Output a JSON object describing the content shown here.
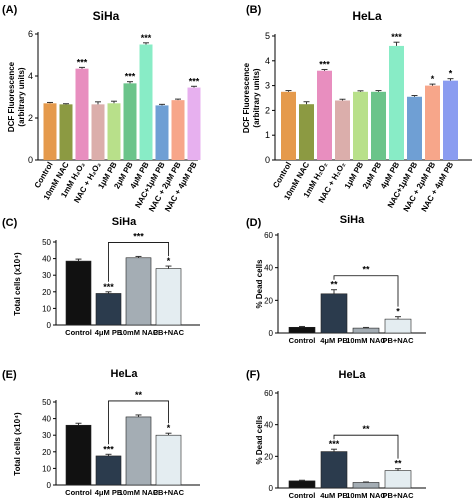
{
  "chart_data": [
    {
      "type": "bar",
      "panel_label": "(A)",
      "title": "SiHa",
      "ylabel_lines": [
        "DCF Fluorescence",
        "(arbitrary units)"
      ],
      "categories": [
        "Control",
        "10mM NAC",
        "1mM H₂O₂",
        "NAC + H₂O₂",
        "1μM PB",
        "2μM PB",
        "4μM PB",
        "NAC+1μM PB",
        "NAC + 2μM PB",
        "NAC + 4μM PB"
      ],
      "values": [
        2.7,
        2.65,
        4.35,
        2.65,
        2.7,
        3.65,
        5.5,
        2.6,
        2.85,
        3.45
      ],
      "errors": [
        0.04,
        0.03,
        0.06,
        0.12,
        0.1,
        0.08,
        0.08,
        0.05,
        0.05,
        0.06
      ],
      "colors": [
        "#e59a4c",
        "#8c9a42",
        "#e88ebf",
        "#dbaeab",
        "#b8e08a",
        "#6bc48a",
        "#88ecc6",
        "#6f9fd4",
        "#f7a68a",
        "#e7b0ef"
      ],
      "significance": [
        "",
        "",
        "***",
        "",
        "",
        "***",
        "***",
        "",
        "",
        "***"
      ],
      "yticks": [
        "0",
        "2",
        "4",
        "6"
      ],
      "ylim": [
        0,
        6
      ]
    },
    {
      "type": "bar",
      "panel_label": "(B)",
      "title": "HeLa",
      "ylabel_lines": [
        "DCF Fluorescence",
        "(arbitrary units)"
      ],
      "categories": [
        "Control",
        "10mM NAC",
        "1mM H₂O₂",
        "NAC + H₂O₂",
        "1μM PB",
        "2μM PB",
        "4μM PB",
        "NAC+1μM PB",
        "NAC + 2μM PB",
        "NAC + 4μM PB"
      ],
      "values": [
        2.75,
        2.25,
        3.6,
        2.4,
        2.75,
        2.75,
        4.6,
        2.55,
        3.0,
        3.2
      ],
      "errors": [
        0.05,
        0.1,
        0.05,
        0.05,
        0.04,
        0.05,
        0.15,
        0.05,
        0.06,
        0.08
      ],
      "colors": [
        "#e59a4c",
        "#8c9a42",
        "#e88ebf",
        "#dbaeab",
        "#b8e08a",
        "#6bc48a",
        "#88ecc6",
        "#6f9fd4",
        "#f7a68a",
        "#8a9cf0"
      ],
      "significance": [
        "",
        "",
        "***",
        "",
        "",
        "",
        "***",
        "",
        "*",
        "*"
      ],
      "yticks": [
        "0",
        "1",
        "2",
        "3",
        "4",
        "5"
      ],
      "ylim": [
        0,
        5
      ]
    },
    {
      "type": "bar",
      "panel_label": "(C)",
      "title": "SiHa",
      "ylabel": "Total cells (x10⁴)",
      "categories": [
        "Control",
        "4μM PB",
        "10mM NAC",
        "PB+NAC"
      ],
      "values": [
        38.5,
        19,
        40.5,
        34
      ],
      "errors": [
        1.2,
        1.0,
        0.8,
        1.5
      ],
      "colors": [
        "#111111",
        "#2b3b4d",
        "#a4adb4",
        "#e4edf1"
      ],
      "significance": [
        "",
        "***",
        "",
        "*"
      ],
      "bracket": {
        "from": 1,
        "to": 3,
        "label": "***"
      },
      "yticks": [
        "0",
        "10",
        "20",
        "30",
        "40",
        "50"
      ],
      "ylim": [
        0,
        50
      ]
    },
    {
      "type": "bar",
      "panel_label": "(D)",
      "title": "SiHa",
      "ylabel": "% Dead cells",
      "categories": [
        "Control",
        "4μM PB",
        "10mM NAC",
        "PB+NAC"
      ],
      "values": [
        3.5,
        24,
        3,
        8.5
      ],
      "errors": [
        0.5,
        2.5,
        0.4,
        1.5
      ],
      "colors": [
        "#111111",
        "#2b3b4d",
        "#a4adb4",
        "#e4edf1"
      ],
      "significance": [
        "",
        "**",
        "",
        "*"
      ],
      "bracket": {
        "from": 1,
        "to": 3,
        "label": "**"
      },
      "yticks": [
        "0",
        "20",
        "40",
        "60"
      ],
      "ylim": [
        0,
        60
      ]
    },
    {
      "type": "bar",
      "panel_label": "(E)",
      "title": "HeLa",
      "ylabel": "Total cells (x10⁴)",
      "categories": [
        "Control",
        "4μM PB",
        "10mM NAC",
        "PB+NAC"
      ],
      "values": [
        36,
        17.5,
        41,
        30
      ],
      "errors": [
        1.2,
        1.0,
        1.2,
        1.2
      ],
      "colors": [
        "#111111",
        "#2b3b4d",
        "#a4adb4",
        "#e4edf1"
      ],
      "significance": [
        "",
        "***",
        "",
        "*"
      ],
      "bracket": {
        "from": 1,
        "to": 3,
        "label": "**"
      },
      "yticks": [
        "0",
        "10",
        "20",
        "30",
        "40",
        "50"
      ],
      "ylim": [
        0,
        50
      ]
    },
    {
      "type": "bar",
      "panel_label": "(F)",
      "title": "HeLa",
      "ylabel": "% Dead cells",
      "categories": [
        "Control",
        "4μM PB",
        "10mM NAC",
        "PB+NAC"
      ],
      "values": [
        4.5,
        23,
        3.5,
        11
      ],
      "errors": [
        0.4,
        1.5,
        0.3,
        1.2
      ],
      "colors": [
        "#111111",
        "#2b3b4d",
        "#a4adb4",
        "#e4edf1"
      ],
      "significance": [
        "",
        "***",
        "",
        "**"
      ],
      "bracket": {
        "from": 1,
        "to": 3,
        "label": "**"
      },
      "yticks": [
        "0",
        "20",
        "40",
        "60"
      ],
      "ylim": [
        0,
        60
      ]
    }
  ]
}
